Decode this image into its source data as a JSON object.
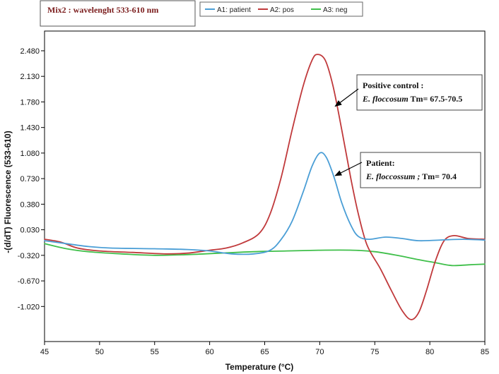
{
  "header": {
    "title": "Mix2 : wavelenght  533-610 nm"
  },
  "chart_data": {
    "type": "line",
    "xlabel": "Temperature (°C)",
    "ylabel": "-(d/dT) Fluorescence (533-610)",
    "xlim": [
      45,
      85
    ],
    "ylim": [
      -1.5,
      2.75
    ],
    "x_ticks": [
      45,
      50,
      55,
      60,
      65,
      70,
      75,
      80,
      85
    ],
    "y_ticks": [
      2.48,
      2.13,
      1.78,
      1.43,
      1.08,
      0.73,
      0.38,
      0.03,
      -0.32,
      -0.67,
      -1.02
    ],
    "y_tick_labels": [
      "2.480",
      "2.130",
      "1.780",
      "1.430",
      "1.080",
      "0.730",
      "0.380",
      "0.030",
      "-0.320",
      "-0.670",
      "-1.020"
    ],
    "grid": false,
    "legend_position": "top",
    "series": [
      {
        "name": "A1: patient",
        "color": "#4a9ed6",
        "points": [
          [
            45,
            -0.12
          ],
          [
            47,
            -0.16
          ],
          [
            49,
            -0.2
          ],
          [
            51,
            -0.22
          ],
          [
            55,
            -0.23
          ],
          [
            58,
            -0.24
          ],
          [
            60,
            -0.26
          ],
          [
            62,
            -0.3
          ],
          [
            64,
            -0.3
          ],
          [
            65.5,
            -0.25
          ],
          [
            66.5,
            -0.1
          ],
          [
            67.5,
            0.15
          ],
          [
            68.5,
            0.55
          ],
          [
            69.3,
            0.9
          ],
          [
            70.0,
            1.08
          ],
          [
            70.6,
            1.02
          ],
          [
            71.3,
            0.75
          ],
          [
            72.0,
            0.4
          ],
          [
            72.8,
            0.1
          ],
          [
            73.5,
            -0.06
          ],
          [
            74.5,
            -0.1
          ],
          [
            76,
            -0.07
          ],
          [
            77.5,
            -0.09
          ],
          [
            79,
            -0.12
          ],
          [
            81,
            -0.11
          ],
          [
            83,
            -0.1
          ],
          [
            85,
            -0.11
          ]
        ]
      },
      {
        "name": "A2: pos",
        "color": "#c0393b",
        "points": [
          [
            45,
            -0.1
          ],
          [
            46.5,
            -0.14
          ],
          [
            48,
            -0.22
          ],
          [
            50,
            -0.26
          ],
          [
            53,
            -0.28
          ],
          [
            56,
            -0.3
          ],
          [
            58,
            -0.29
          ],
          [
            60,
            -0.25
          ],
          [
            61.5,
            -0.22
          ],
          [
            63,
            -0.15
          ],
          [
            64.5,
            -0.02
          ],
          [
            65.5,
            0.25
          ],
          [
            66.5,
            0.75
          ],
          [
            67.5,
            1.4
          ],
          [
            68.5,
            2.0
          ],
          [
            69.3,
            2.35
          ],
          [
            69.8,
            2.43
          ],
          [
            70.5,
            2.35
          ],
          [
            71.2,
            2.0
          ],
          [
            72,
            1.4
          ],
          [
            72.8,
            0.75
          ],
          [
            73.5,
            0.25
          ],
          [
            74.3,
            -0.18
          ],
          [
            75.5,
            -0.5
          ],
          [
            76.5,
            -0.8
          ],
          [
            77.5,
            -1.08
          ],
          [
            78.3,
            -1.2
          ],
          [
            79,
            -1.1
          ],
          [
            79.7,
            -0.8
          ],
          [
            80.5,
            -0.4
          ],
          [
            81.3,
            -0.12
          ],
          [
            82.2,
            -0.05
          ],
          [
            83.5,
            -0.09
          ],
          [
            85,
            -0.1
          ]
        ]
      },
      {
        "name": "A3: neg",
        "color": "#3fbf4a",
        "points": [
          [
            45,
            -0.16
          ],
          [
            47,
            -0.23
          ],
          [
            49,
            -0.27
          ],
          [
            52,
            -0.3
          ],
          [
            55,
            -0.32
          ],
          [
            58,
            -0.31
          ],
          [
            61,
            -0.29
          ],
          [
            64,
            -0.27
          ],
          [
            67,
            -0.26
          ],
          [
            70,
            -0.25
          ],
          [
            73,
            -0.25
          ],
          [
            75,
            -0.27
          ],
          [
            77,
            -0.32
          ],
          [
            79,
            -0.38
          ],
          [
            80.5,
            -0.42
          ],
          [
            82,
            -0.46
          ],
          [
            83.5,
            -0.45
          ],
          [
            85,
            -0.44
          ]
        ]
      }
    ],
    "annotations": [
      {
        "id": "positive",
        "line1": "Positive control :",
        "line2_italic": "E. floccosum",
        "line2_rest": " Tm= 67.5-70.5",
        "arrow_to": [
          71.4,
          1.72
        ]
      },
      {
        "id": "patient",
        "line1": "Patient:",
        "line2_italic": "E. floccossum ;",
        "line2_rest": " Tm= 70.4",
        "arrow_to": [
          71.4,
          0.77
        ]
      }
    ]
  }
}
